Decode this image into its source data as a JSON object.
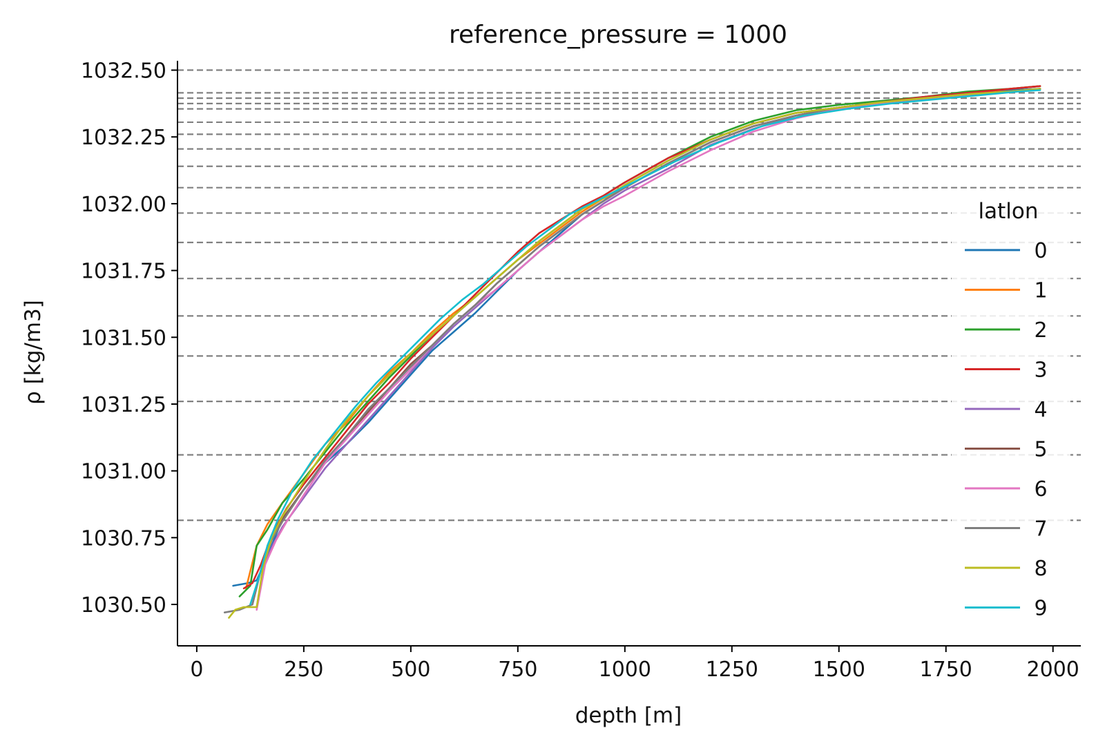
{
  "chart_data": {
    "type": "line",
    "title": "reference_pressure = 1000",
    "xlabel": "depth [m]",
    "ylabel": "ρ [kg/m3]",
    "xlim": [
      -45,
      2065
    ],
    "ylim": [
      1030.345,
      1032.535
    ],
    "xticks": [
      0,
      250,
      500,
      750,
      1000,
      1250,
      1500,
      1750,
      2000
    ],
    "xtick_labels": [
      "0",
      "250",
      "500",
      "750",
      "1000",
      "1250",
      "1500",
      "1750",
      "2000"
    ],
    "yticks": [
      1030.5,
      1030.75,
      1031.0,
      1031.25,
      1031.5,
      1031.75,
      1032.0,
      1032.25,
      1032.5
    ],
    "ytick_labels": [
      "1030.50",
      "1030.75",
      "1031.00",
      "1031.25",
      "1031.50",
      "1031.75",
      "1032.00",
      "1032.25",
      "1032.50"
    ],
    "reference_lines": [
      1032.5,
      1032.415,
      1032.395,
      1032.375,
      1032.355,
      1032.305,
      1032.26,
      1032.205,
      1032.14,
      1032.06,
      1031.965,
      1031.855,
      1031.72,
      1031.58,
      1031.43,
      1031.26,
      1031.06,
      1030.815
    ],
    "reference_line_color": "#808080",
    "legend": {
      "title": "latlon",
      "placement": "right"
    },
    "series": [
      {
        "name": "0",
        "color": "#1f77b4",
        "x": [
          85,
          120,
          140,
          165,
          200,
          250,
          300,
          350,
          400,
          450,
          500,
          550,
          600,
          650,
          700,
          750,
          800,
          850,
          900,
          950,
          1000,
          1100,
          1200,
          1300,
          1400,
          1500,
          1600,
          1700,
          1800,
          1900,
          1970
        ],
        "y": [
          1030.57,
          1030.58,
          1030.59,
          1030.68,
          1030.82,
          1030.93,
          1031.03,
          1031.1,
          1031.18,
          1031.27,
          1031.36,
          1031.45,
          1031.52,
          1031.59,
          1031.67,
          1031.75,
          1031.82,
          1031.89,
          1031.96,
          1032.01,
          1032.07,
          1032.16,
          1032.24,
          1032.3,
          1032.34,
          1032.36,
          1032.38,
          1032.39,
          1032.41,
          1032.425,
          1032.43
        ]
      },
      {
        "name": "1",
        "color": "#ff7f0e",
        "x": [
          115,
          140,
          165,
          200,
          250,
          300,
          350,
          400,
          450,
          500,
          550,
          600,
          650,
          700,
          750,
          800,
          850,
          900,
          950,
          1000,
          1100,
          1200,
          1300,
          1400,
          1500,
          1600,
          1700,
          1800,
          1900,
          1970
        ],
        "y": [
          1030.56,
          1030.72,
          1030.8,
          1030.88,
          1030.99,
          1031.1,
          1031.18,
          1031.28,
          1031.37,
          1031.44,
          1031.52,
          1031.59,
          1031.65,
          1031.72,
          1031.79,
          1031.85,
          1031.91,
          1031.97,
          1032.02,
          1032.06,
          1032.15,
          1032.23,
          1032.29,
          1032.33,
          1032.36,
          1032.38,
          1032.395,
          1032.41,
          1032.43,
          1032.44
        ]
      },
      {
        "name": "2",
        "color": "#2ca02c",
        "x": [
          100,
          125,
          140,
          165,
          200,
          250,
          300,
          350,
          400,
          450,
          500,
          550,
          600,
          650,
          700,
          750,
          800,
          850,
          900,
          950,
          1000,
          1100,
          1200,
          1300,
          1400,
          1500,
          1600,
          1700,
          1800,
          1900,
          1970
        ],
        "y": [
          1030.53,
          1030.57,
          1030.72,
          1030.78,
          1030.88,
          1030.97,
          1031.07,
          1031.17,
          1031.26,
          1031.35,
          1031.43,
          1031.51,
          1031.58,
          1031.65,
          1031.72,
          1031.79,
          1031.86,
          1031.92,
          1031.98,
          1032.03,
          1032.08,
          1032.17,
          1032.25,
          1032.31,
          1032.35,
          1032.37,
          1032.385,
          1032.4,
          1032.42,
          1032.43,
          1032.44
        ]
      },
      {
        "name": "3",
        "color": "#d62728",
        "x": [
          110,
          130,
          150,
          175,
          210,
          250,
          300,
          350,
          400,
          450,
          500,
          550,
          600,
          650,
          700,
          750,
          800,
          850,
          900,
          950,
          1000,
          1100,
          1200,
          1300,
          1400,
          1500,
          1600,
          1700,
          1800,
          1900,
          1970
        ],
        "y": [
          1030.56,
          1030.58,
          1030.65,
          1030.76,
          1030.86,
          1030.95,
          1031.05,
          1031.15,
          1031.25,
          1031.33,
          1031.42,
          1031.5,
          1031.58,
          1031.66,
          1031.74,
          1031.82,
          1031.89,
          1031.94,
          1031.99,
          1032.03,
          1032.08,
          1032.17,
          1032.24,
          1032.3,
          1032.34,
          1032.36,
          1032.38,
          1032.4,
          1032.415,
          1032.43,
          1032.44
        ]
      },
      {
        "name": "4",
        "color": "#9467bd",
        "x": [
          140,
          160,
          180,
          200,
          250,
          300,
          350,
          400,
          450,
          500,
          550,
          600,
          650,
          700,
          750,
          800,
          850,
          900,
          950,
          1000,
          1100,
          1200,
          1300,
          1400,
          1500,
          1600,
          1700,
          1800,
          1900,
          1970
        ],
        "y": [
          1030.49,
          1030.66,
          1030.73,
          1030.79,
          1030.9,
          1031.01,
          1031.1,
          1031.19,
          1031.28,
          1031.37,
          1031.46,
          1031.54,
          1031.61,
          1031.68,
          1031.75,
          1031.82,
          1031.88,
          1031.94,
          1032.0,
          1032.05,
          1032.13,
          1032.22,
          1032.28,
          1032.33,
          1032.36,
          1032.38,
          1032.395,
          1032.41,
          1032.42,
          1032.43
        ]
      },
      {
        "name": "5",
        "color": "#8c564b",
        "x": [
          130,
          150,
          170,
          200,
          250,
          300,
          350,
          400,
          450,
          500,
          550,
          600,
          650,
          700,
          750,
          800,
          850,
          900,
          950,
          1000,
          1100,
          1200,
          1300,
          1400,
          1500,
          1600,
          1700,
          1800,
          1900,
          1970
        ],
        "y": [
          1030.5,
          1030.63,
          1030.73,
          1030.82,
          1030.93,
          1031.03,
          1031.13,
          1031.22,
          1031.31,
          1031.4,
          1031.47,
          1031.55,
          1031.62,
          1031.7,
          1031.77,
          1031.84,
          1031.9,
          1031.96,
          1032.01,
          1032.06,
          1032.15,
          1032.23,
          1032.29,
          1032.33,
          1032.36,
          1032.38,
          1032.395,
          1032.41,
          1032.42,
          1032.43
        ]
      },
      {
        "name": "6",
        "color": "#e377c2",
        "x": [
          140,
          160,
          185,
          210,
          250,
          300,
          350,
          400,
          450,
          500,
          550,
          600,
          650,
          700,
          750,
          800,
          850,
          900,
          950,
          1000,
          1100,
          1200,
          1300,
          1400,
          1500,
          1600,
          1700,
          1800,
          1900,
          1970
        ],
        "y": [
          1030.48,
          1030.65,
          1030.74,
          1030.81,
          1030.91,
          1031.03,
          1031.12,
          1031.21,
          1031.3,
          1031.38,
          1031.47,
          1031.55,
          1031.62,
          1031.68,
          1031.75,
          1031.82,
          1031.88,
          1031.94,
          1031.99,
          1032.03,
          1032.12,
          1032.2,
          1032.27,
          1032.32,
          1032.355,
          1032.375,
          1032.39,
          1032.405,
          1032.42,
          1032.43
        ]
      },
      {
        "name": "7",
        "color": "#7f7f7f",
        "x": [
          65,
          100,
          130,
          150,
          175,
          200,
          250,
          300,
          350,
          400,
          450,
          500,
          550,
          600,
          650,
          700,
          750,
          800,
          850,
          900,
          950,
          1000,
          1100,
          1200,
          1300,
          1400,
          1500,
          1600,
          1700,
          1800,
          1900,
          1970
        ],
        "y": [
          1030.47,
          1030.48,
          1030.5,
          1030.63,
          1030.74,
          1030.81,
          1030.93,
          1031.04,
          1031.13,
          1031.23,
          1031.31,
          1031.39,
          1031.47,
          1031.55,
          1031.62,
          1031.7,
          1031.77,
          1031.84,
          1031.9,
          1031.96,
          1032.01,
          1032.06,
          1032.15,
          1032.23,
          1032.29,
          1032.33,
          1032.36,
          1032.38,
          1032.395,
          1032.41,
          1032.42,
          1032.43
        ]
      },
      {
        "name": "8",
        "color": "#bcbd22",
        "x": [
          75,
          90,
          110,
          140,
          155,
          175,
          200,
          250,
          300,
          350,
          400,
          450,
          500,
          550,
          600,
          650,
          700,
          750,
          800,
          850,
          900,
          950,
          1000,
          1100,
          1200,
          1300,
          1400,
          1500,
          1600,
          1700,
          1800,
          1900,
          1970
        ],
        "y": [
          1030.45,
          1030.48,
          1030.49,
          1030.49,
          1030.64,
          1030.75,
          1030.83,
          1030.96,
          1031.08,
          1031.19,
          1031.28,
          1031.36,
          1031.44,
          1031.51,
          1031.58,
          1031.65,
          1031.72,
          1031.79,
          1031.86,
          1031.92,
          1031.98,
          1032.02,
          1032.07,
          1032.16,
          1032.24,
          1032.3,
          1032.34,
          1032.36,
          1032.38,
          1032.395,
          1032.41,
          1032.42,
          1032.43
        ]
      },
      {
        "name": "9",
        "color": "#17becf",
        "x": [
          125,
          145,
          165,
          190,
          225,
          270,
          320,
          370,
          420,
          470,
          520,
          570,
          620,
          670,
          720,
          770,
          820,
          870,
          920,
          970,
          1020,
          1120,
          1220,
          1320,
          1420,
          1520,
          1620,
          1720,
          1820,
          1920,
          1970
        ],
        "y": [
          1030.5,
          1030.6,
          1030.72,
          1030.82,
          1030.93,
          1031.04,
          1031.14,
          1031.24,
          1031.33,
          1031.41,
          1031.49,
          1031.57,
          1031.64,
          1031.7,
          1031.77,
          1031.84,
          1031.9,
          1031.96,
          1032.0,
          1032.04,
          1032.08,
          1032.16,
          1032.23,
          1032.29,
          1032.33,
          1032.355,
          1032.375,
          1032.39,
          1032.405,
          1032.42,
          1032.425
        ]
      }
    ]
  }
}
